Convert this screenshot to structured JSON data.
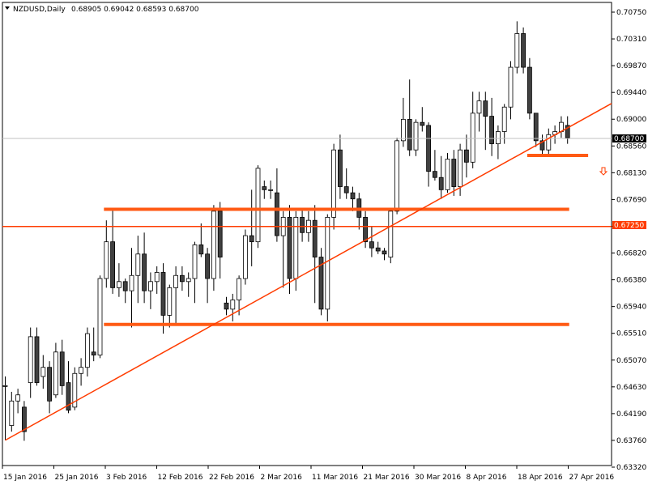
{
  "header": {
    "symbol": "NZDUSD,Daily",
    "ohlc": "0.68905 0.69042 0.68593 0.68700"
  },
  "colors": {
    "line": "#ff3c00",
    "bar": "#ff5a14",
    "bear": "#404040",
    "bull": "#ffffff",
    "label_bg": "#ff3c00",
    "arrow": "#ff3c00"
  },
  "chart_data": {
    "type": "candlestick",
    "ylim": [
      0.6321,
      0.7092
    ],
    "y_ticks": [
      "0.70750",
      "0.70310",
      "0.69870",
      "0.69440",
      "0.69000",
      "0.68560",
      "0.68130",
      "0.67690",
      "0.67250",
      "0.66820",
      "0.66380",
      "0.65940",
      "0.65510",
      "0.65070",
      "0.64630",
      "0.64190",
      "0.63760",
      "0.63320"
    ],
    "x_ticks": [
      "15 Jan 2016",
      "25 Jan 2016",
      "3 Feb 2016",
      "12 Feb 2016",
      "22 Feb 2016",
      "2 Mar 2016",
      "11 Mar 2016",
      "21 Mar 2016",
      "30 Mar 2016",
      "8 Apr 2016",
      "18 Apr 2016",
      "27 Apr 2016"
    ],
    "current_price": "0.68700",
    "level_price": "0.67250",
    "candles": [
      [
        0.6465,
        0.648,
        0.6376,
        0.6465
      ],
      [
        0.64,
        0.6455,
        0.639,
        0.644
      ],
      [
        0.644,
        0.646,
        0.642,
        0.645
      ],
      [
        0.643,
        0.644,
        0.6375,
        0.639
      ],
      [
        0.647,
        0.656,
        0.6445,
        0.6545
      ],
      [
        0.6545,
        0.656,
        0.6465,
        0.647
      ],
      [
        0.648,
        0.6515,
        0.646,
        0.6495
      ],
      [
        0.6495,
        0.6505,
        0.642,
        0.644
      ],
      [
        0.645,
        0.6535,
        0.6445,
        0.652
      ],
      [
        0.652,
        0.654,
        0.645,
        0.6465
      ],
      [
        0.647,
        0.6505,
        0.642,
        0.6425
      ],
      [
        0.643,
        0.6495,
        0.6425,
        0.6485
      ],
      [
        0.6485,
        0.651,
        0.6465,
        0.6495
      ],
      [
        0.6495,
        0.656,
        0.648,
        0.655
      ],
      [
        0.652,
        0.656,
        0.6505,
        0.6515
      ],
      [
        0.6515,
        0.6645,
        0.651,
        0.664
      ],
      [
        0.664,
        0.6735,
        0.6625,
        0.67
      ],
      [
        0.67,
        0.6755,
        0.6615,
        0.6625
      ],
      [
        0.6625,
        0.6665,
        0.661,
        0.6635
      ],
      [
        0.6635,
        0.664,
        0.66,
        0.662
      ],
      [
        0.662,
        0.669,
        0.656,
        0.6645
      ],
      [
        0.6645,
        0.671,
        0.66,
        0.668
      ],
      [
        0.668,
        0.6715,
        0.66,
        0.662
      ],
      [
        0.662,
        0.665,
        0.659,
        0.6635
      ],
      [
        0.6635,
        0.666,
        0.6615,
        0.665
      ],
      [
        0.665,
        0.6665,
        0.655,
        0.658
      ],
      [
        0.658,
        0.663,
        0.656,
        0.6625
      ],
      [
        0.6625,
        0.666,
        0.6565,
        0.6645
      ],
      [
        0.6645,
        0.666,
        0.662,
        0.6635
      ],
      [
        0.6635,
        0.665,
        0.661,
        0.664
      ],
      [
        0.664,
        0.67,
        0.66,
        0.6695
      ],
      [
        0.6695,
        0.673,
        0.6675,
        0.668
      ],
      [
        0.668,
        0.669,
        0.66,
        0.664
      ],
      [
        0.664,
        0.676,
        0.662,
        0.675
      ],
      [
        0.675,
        0.6765,
        0.664,
        0.6675
      ],
      [
        0.66,
        0.661,
        0.658,
        0.659
      ],
      [
        0.659,
        0.6615,
        0.657,
        0.6605
      ],
      [
        0.6605,
        0.6645,
        0.658,
        0.664
      ],
      [
        0.664,
        0.672,
        0.663,
        0.671
      ],
      [
        0.671,
        0.6785,
        0.666,
        0.67
      ],
      [
        0.67,
        0.6825,
        0.669,
        0.682
      ],
      [
        0.679,
        0.68,
        0.677,
        0.6785
      ],
      [
        0.6785,
        0.68,
        0.677,
        0.6785
      ],
      [
        0.678,
        0.682,
        0.67,
        0.671
      ],
      [
        0.671,
        0.675,
        0.6625,
        0.674
      ],
      [
        0.674,
        0.676,
        0.6615,
        0.664
      ],
      [
        0.664,
        0.675,
        0.662,
        0.674
      ],
      [
        0.674,
        0.6755,
        0.67,
        0.6715
      ],
      [
        0.6715,
        0.675,
        0.67,
        0.6735
      ],
      [
        0.6735,
        0.676,
        0.66,
        0.6675
      ],
      [
        0.6675,
        0.669,
        0.658,
        0.659
      ],
      [
        0.659,
        0.6745,
        0.657,
        0.674
      ],
      [
        0.674,
        0.686,
        0.672,
        0.685
      ],
      [
        0.685,
        0.6875,
        0.677,
        0.679
      ],
      [
        0.679,
        0.682,
        0.677,
        0.678
      ],
      [
        0.678,
        0.679,
        0.675,
        0.677
      ],
      [
        0.677,
        0.678,
        0.672,
        0.674
      ],
      [
        0.674,
        0.675,
        0.669,
        0.67
      ],
      [
        0.67,
        0.6725,
        0.6675,
        0.669
      ],
      [
        0.669,
        0.67,
        0.668,
        0.6685
      ],
      [
        0.6685,
        0.669,
        0.667,
        0.668
      ],
      [
        0.6675,
        0.6755,
        0.6665,
        0.675
      ],
      [
        0.675,
        0.687,
        0.6745,
        0.6865
      ],
      [
        0.6865,
        0.6935,
        0.6855,
        0.69
      ],
      [
        0.69,
        0.6965,
        0.684,
        0.685
      ],
      [
        0.685,
        0.69,
        0.684,
        0.6895
      ],
      [
        0.6895,
        0.692,
        0.688,
        0.689
      ],
      [
        0.689,
        0.6895,
        0.679,
        0.6815
      ],
      [
        0.6815,
        0.685,
        0.68,
        0.6805
      ],
      [
        0.6805,
        0.684,
        0.677,
        0.6785
      ],
      [
        0.6785,
        0.6845,
        0.678,
        0.6835
      ],
      [
        0.6835,
        0.685,
        0.6775,
        0.679
      ],
      [
        0.679,
        0.686,
        0.6775,
        0.685
      ],
      [
        0.685,
        0.6875,
        0.6805,
        0.683
      ],
      [
        0.683,
        0.6945,
        0.682,
        0.691
      ],
      [
        0.691,
        0.6945,
        0.688,
        0.693
      ],
      [
        0.693,
        0.6945,
        0.685,
        0.6905
      ],
      [
        0.6905,
        0.6935,
        0.684,
        0.686
      ],
      [
        0.686,
        0.689,
        0.6835,
        0.688
      ],
      [
        0.688,
        0.6925,
        0.686,
        0.692
      ],
      [
        0.692,
        0.6995,
        0.69,
        0.6985
      ],
      [
        0.6985,
        0.706,
        0.6975,
        0.704
      ],
      [
        0.704,
        0.705,
        0.6975,
        0.6985
      ],
      [
        0.6985,
        0.7,
        0.69,
        0.691
      ],
      [
        0.691,
        0.691,
        0.6855,
        0.6865
      ],
      [
        0.6865,
        0.6875,
        0.684,
        0.685
      ],
      [
        0.685,
        0.6885,
        0.684,
        0.6875
      ],
      [
        0.6875,
        0.689,
        0.686,
        0.688
      ],
      [
        0.688,
        0.6905,
        0.687,
        0.6895
      ],
      [
        0.689,
        0.6905,
        0.686,
        0.687
      ]
    ],
    "overlays": {
      "trendline": [
        [
          0,
          0.6376
        ],
        [
          89,
          0.6886
        ]
      ],
      "horizontal_level": 0.6725,
      "resistance": {
        "from": 16,
        "to": 89,
        "value": 0.6753
      },
      "support": {
        "from": 16,
        "to": 89,
        "value": 0.6565
      },
      "support_short": {
        "from": 83,
        "to": 92,
        "value": 0.6841
      }
    }
  }
}
